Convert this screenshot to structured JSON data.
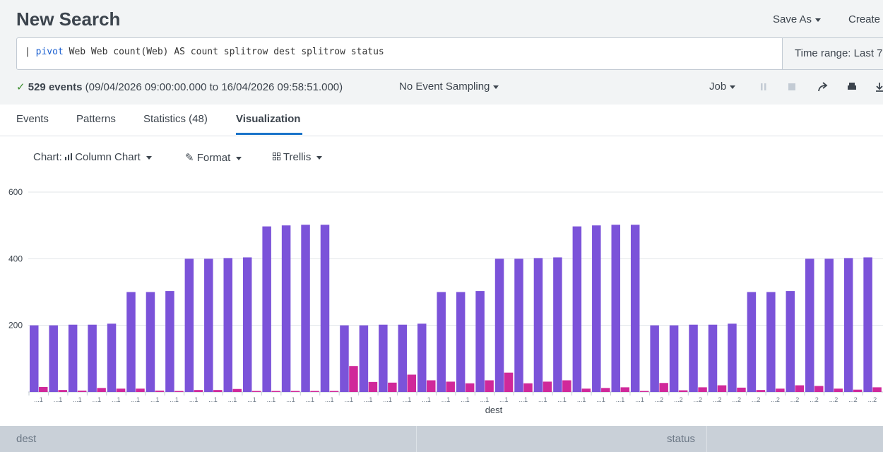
{
  "header": {
    "title": "New Search",
    "save_as": "Save As",
    "create": "Create"
  },
  "search": {
    "query": [
      "|",
      "pivot",
      "Web Web count(Web) AS count splitrow dest splitrow status"
    ],
    "time_range": "Time range: Last 7"
  },
  "status": {
    "events": "529 events",
    "range": "(09/04/2026 09:00:00.000 to 16/04/2026 09:58:51.000)",
    "sampling": "No Event Sampling",
    "job": "Job"
  },
  "tabs": [
    "Events",
    "Patterns",
    "Statistics (48)",
    "Visualization"
  ],
  "toolbar": {
    "chart": "Chart:",
    "chart_type": "Column Chart",
    "format": "Format",
    "trellis": "Trellis"
  },
  "table_header": [
    "dest",
    "status"
  ],
  "chart_data": {
    "type": "bar",
    "x_label": "dest",
    "categories": [
      "...1",
      "...1",
      "...1",
      "...1",
      "...1",
      "...1",
      "...1",
      "...1",
      "...1",
      "...1",
      "...1",
      "...1",
      "...1",
      "...1",
      "...1",
      "...1",
      "...1",
      "...1",
      "...1",
      "...1",
      "...1",
      "...1",
      "...1",
      "...1",
      "...1",
      "...1",
      "...1",
      "...1",
      "...1",
      "...1",
      "...1",
      "...1",
      "...2",
      "...2",
      "...2",
      "...2",
      "...2",
      "...2",
      "...2",
      "...2",
      "...2",
      "...2",
      "...2",
      "...2"
    ],
    "series": [
      {
        "color": "#7b53d9",
        "values": [
          200,
          200,
          202,
          202,
          205,
          300,
          300,
          303,
          400,
          400,
          402,
          404,
          497,
          500,
          502,
          502,
          200,
          200,
          202,
          202,
          205,
          300,
          300,
          303,
          400,
          400,
          402,
          404,
          497,
          500,
          502,
          502,
          200,
          200,
          202,
          202,
          205,
          300,
          300,
          303,
          400,
          400,
          402,
          404
        ]
      },
      {
        "color": "#d0289a",
        "values": [
          15,
          6,
          4,
          12,
          10,
          10,
          4,
          3,
          6,
          6,
          9,
          3,
          3,
          3,
          3,
          3,
          78,
          30,
          28,
          52,
          35,
          31,
          26,
          35,
          58,
          26,
          31,
          35,
          10,
          12,
          14,
          3,
          27,
          5,
          14,
          20,
          13,
          6,
          10,
          20,
          18,
          10,
          7,
          14
        ]
      }
    ],
    "ylim": [
      0,
      600
    ],
    "yticks": [
      200,
      400,
      600
    ],
    "grid": true
  }
}
